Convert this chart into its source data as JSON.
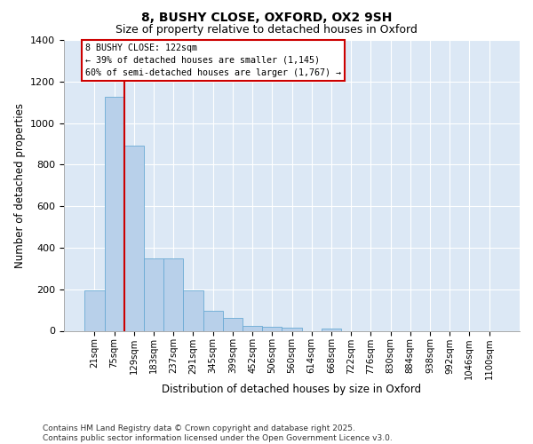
{
  "title_line1": "8, BUSHY CLOSE, OXFORD, OX2 9SH",
  "title_line2": "Size of property relative to detached houses in Oxford",
  "xlabel": "Distribution of detached houses by size in Oxford",
  "ylabel": "Number of detached properties",
  "categories": [
    "21sqm",
    "75sqm",
    "129sqm",
    "183sqm",
    "237sqm",
    "291sqm",
    "345sqm",
    "399sqm",
    "452sqm",
    "506sqm",
    "560sqm",
    "614sqm",
    "668sqm",
    "722sqm",
    "776sqm",
    "830sqm",
    "884sqm",
    "938sqm",
    "992sqm",
    "1046sqm",
    "1100sqm"
  ],
  "values": [
    195,
    1125,
    890,
    350,
    350,
    195,
    95,
    60,
    22,
    18,
    15,
    0,
    12,
    0,
    0,
    0,
    0,
    0,
    0,
    0,
    0
  ],
  "bar_color": "#b8d0ea",
  "bar_edge_color": "#6aaad4",
  "vline_x": 1.5,
  "vline_color": "#cc0000",
  "annotation_text": "8 BUSHY CLOSE: 122sqm\n← 39% of detached houses are smaller (1,145)\n60% of semi-detached houses are larger (1,767) →",
  "annotation_box_edgecolor": "#cc0000",
  "annotation_box_facecolor": "#ffffff",
  "ylim": [
    0,
    1400
  ],
  "yticks": [
    0,
    200,
    400,
    600,
    800,
    1000,
    1200,
    1400
  ],
  "bg_color": "#dce8f5",
  "footer": "Contains HM Land Registry data © Crown copyright and database right 2025.\nContains public sector information licensed under the Open Government Licence v3.0."
}
